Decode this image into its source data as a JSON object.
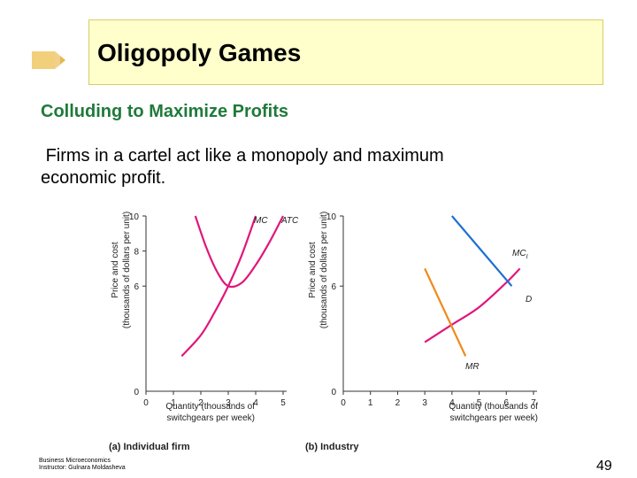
{
  "slide": {
    "title": "Oligopoly Games",
    "subtitle": "Colluding to Maximize Profits",
    "body_line1": "Firms in a cartel act like a monopoly and maximum",
    "body_line2": "economic profit.",
    "footer_line1": "Business Microeconomics",
    "footer_line2": "Instructor: Gulnara Moldasheva",
    "page_number": "49"
  },
  "colors": {
    "title_background": "#ffffcc",
    "subtitle_green": "#1f7a3a",
    "mc_curve": "#e0167a",
    "atc_curve": "#e0167a",
    "demand_curve": "#1f6fd1",
    "mr_curve": "#f08a1c"
  },
  "icons": {
    "title_decoration": "pencil-icon"
  },
  "chart_data": [
    {
      "type": "line",
      "panel_label": "(a) Individual firm",
      "ylabel": "Price and cost (thousands of dollars per unit)",
      "xlabel": "Quantity (thousands of switchgears per week)",
      "xlim": [
        0,
        5
      ],
      "ylim": [
        0,
        10
      ],
      "x_ticks": [
        "0",
        "1",
        "2",
        "3",
        "4",
        "5"
      ],
      "y_ticks": [
        "10",
        "8",
        "6",
        "0"
      ],
      "series": [
        {
          "name": "MC",
          "x": [
            1.3,
            2.0,
            2.5,
            3.0,
            3.5,
            4.0
          ],
          "y": [
            2.0,
            3.2,
            4.5,
            6.0,
            7.8,
            10.0
          ]
        },
        {
          "name": "ATC",
          "x": [
            1.8,
            2.2,
            2.6,
            3.0,
            3.5,
            4.0,
            4.5,
            5.0
          ],
          "y": [
            10.0,
            8.2,
            6.8,
            6.0,
            6.2,
            7.2,
            8.5,
            10.0
          ]
        }
      ]
    },
    {
      "type": "line",
      "panel_label": "(b) Industry",
      "ylabel": "Price and cost (thousands of dollars per unit)",
      "xlabel": "Quantity (thousands of switchgears per week)",
      "xlim": [
        0,
        7
      ],
      "ylim": [
        0,
        10
      ],
      "x_ticks": [
        "0",
        "1",
        "2",
        "3",
        "4",
        "5",
        "6",
        "7"
      ],
      "y_ticks": [
        "10",
        "6",
        "0"
      ],
      "series": [
        {
          "name": "MC",
          "subscript": "I",
          "x": [
            3.0,
            4.0,
            5.0,
            6.0,
            6.5
          ],
          "y": [
            2.8,
            3.8,
            4.8,
            6.2,
            7.0
          ]
        },
        {
          "name": "D",
          "x": [
            4.0,
            6.2
          ],
          "y": [
            10.0,
            6.0
          ]
        },
        {
          "name": "MR",
          "x": [
            3.0,
            4.5
          ],
          "y": [
            7.0,
            2.0
          ]
        }
      ]
    }
  ]
}
